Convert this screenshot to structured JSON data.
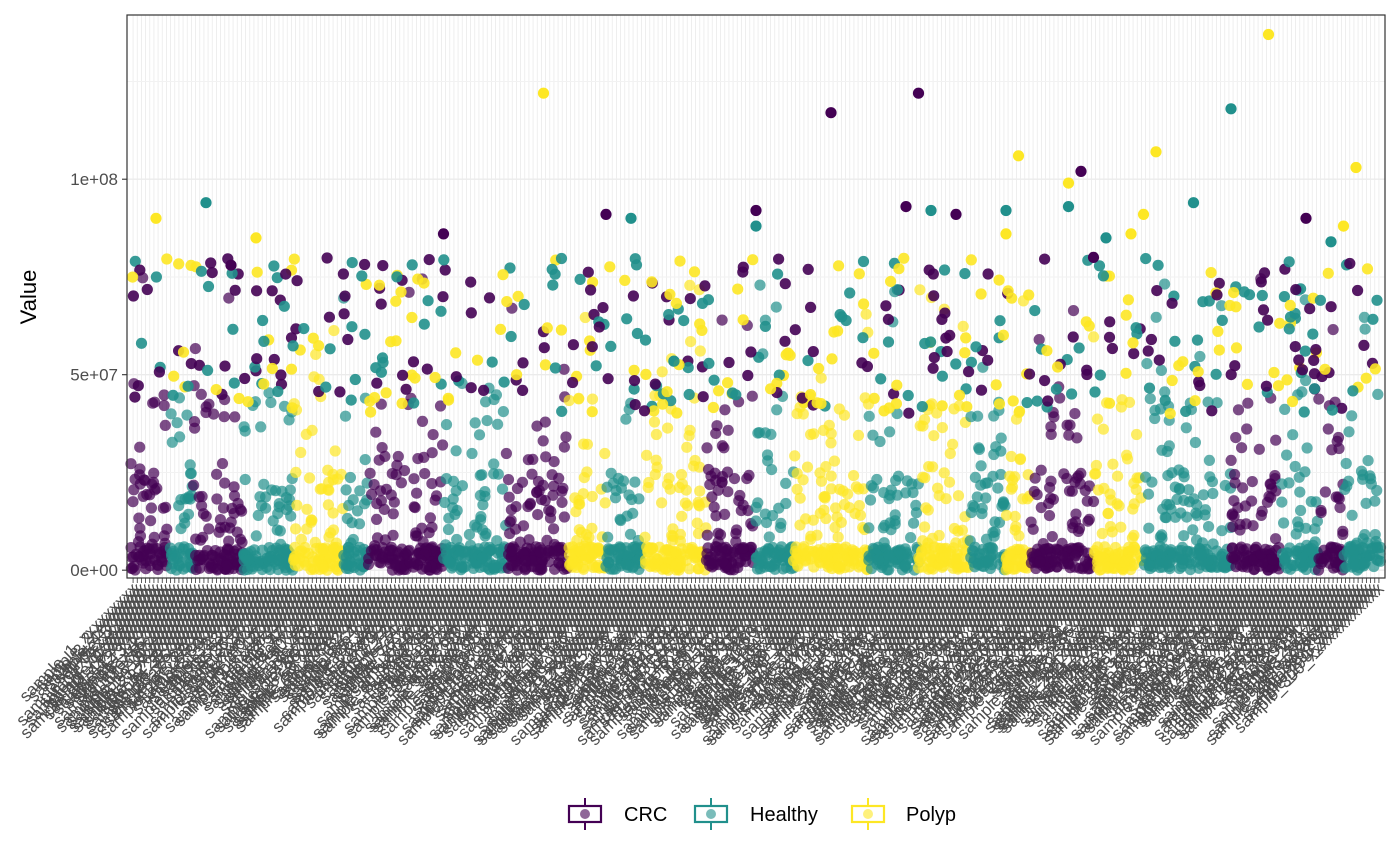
{
  "chart_data": {
    "type": "scatter",
    "title": "",
    "xlabel": "",
    "ylabel": "Value",
    "x_axis": {
      "kind": "categorical",
      "category_count": 300,
      "tick_label_prefix": "sample",
      "tick_labels_overlapping": true
    },
    "y_axis": {
      "ylim": [
        -2000000,
        142000000
      ],
      "ticks": [
        0,
        50000000,
        100000000
      ],
      "tick_labels": [
        "0e+00",
        "5e+07",
        "1e+08"
      ]
    },
    "grid": true,
    "legend": {
      "placement": "bottom",
      "entries": [
        "CRC",
        "Healthy",
        "Polyp"
      ]
    },
    "colors": {
      "CRC": "#440154",
      "Healthy": "#21908C",
      "Polyp": "#FDE725"
    },
    "series": [
      {
        "name": "CRC",
        "blocks": [
          [
            0.0,
            0.03
          ],
          [
            0.05,
            0.09
          ],
          [
            0.19,
            0.25
          ],
          [
            0.3,
            0.35
          ],
          [
            0.46,
            0.5
          ],
          [
            0.72,
            0.77
          ],
          [
            0.88,
            0.92
          ],
          [
            0.95,
            0.97
          ]
        ],
        "outliers": [
          [
            0.38,
            91000000
          ],
          [
            0.56,
            117000000
          ],
          [
            0.5,
            92000000
          ],
          [
            0.62,
            93000000
          ],
          [
            0.63,
            122000000
          ],
          [
            0.66,
            91000000
          ],
          [
            0.76,
            102000000
          ],
          [
            0.77,
            80000000
          ],
          [
            0.94,
            90000000
          ],
          [
            0.08,
            78000000
          ],
          [
            0.25,
            86000000
          ]
        ]
      },
      {
        "name": "Healthy",
        "blocks": [
          [
            0.03,
            0.05
          ],
          [
            0.09,
            0.13
          ],
          [
            0.17,
            0.19
          ],
          [
            0.25,
            0.3
          ],
          [
            0.38,
            0.41
          ],
          [
            0.5,
            0.53
          ],
          [
            0.59,
            0.63
          ],
          [
            0.67,
            0.7
          ],
          [
            0.81,
            0.88
          ],
          [
            0.92,
            0.95
          ],
          [
            0.97,
            1.0
          ]
        ],
        "outliers": [
          [
            0.06,
            94000000
          ],
          [
            0.4,
            90000000
          ],
          [
            0.5,
            88000000
          ],
          [
            0.64,
            92000000
          ],
          [
            0.78,
            85000000
          ],
          [
            0.75,
            93000000
          ],
          [
            0.7,
            92000000
          ],
          [
            0.85,
            94000000
          ],
          [
            0.88,
            118000000
          ],
          [
            0.96,
            84000000
          ]
        ]
      },
      {
        "name": "Polyp",
        "blocks": [
          [
            0.13,
            0.17
          ],
          [
            0.35,
            0.38
          ],
          [
            0.41,
            0.46
          ],
          [
            0.53,
            0.59
          ],
          [
            0.63,
            0.67
          ],
          [
            0.7,
            0.72
          ],
          [
            0.77,
            0.81
          ]
        ],
        "outliers": [
          [
            0.33,
            122000000
          ],
          [
            0.71,
            106000000
          ],
          [
            0.75,
            99000000
          ],
          [
            0.81,
            91000000
          ],
          [
            0.82,
            107000000
          ],
          [
            0.8,
            86000000
          ],
          [
            0.91,
            137000000
          ],
          [
            0.98,
            103000000
          ],
          [
            0.7,
            86000000
          ],
          [
            0.97,
            88000000
          ],
          [
            0.02,
            90000000
          ],
          [
            0.1,
            85000000
          ]
        ]
      }
    ]
  }
}
